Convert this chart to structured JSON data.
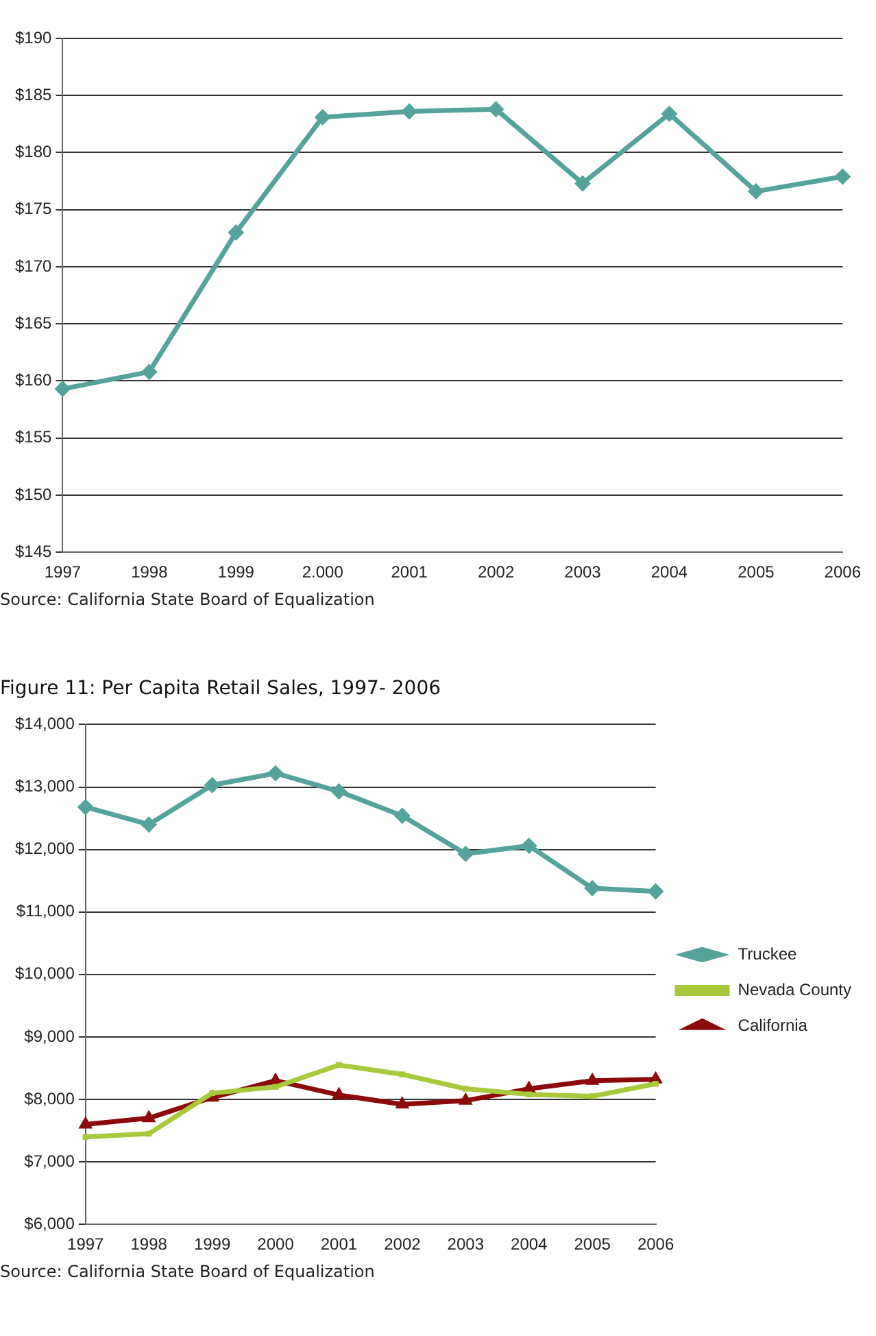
{
  "chart_data": [
    {
      "type": "line",
      "categories": [
        "1997",
        "1998",
        "1999",
        "2.000",
        "2001",
        "2002",
        "2003",
        "2004",
        "2005",
        "2006"
      ],
      "series": [
        {
          "color": "#55a39a",
          "marker": "diamond",
          "values": [
            159.3,
            160.8,
            173.0,
            183.1,
            183.6,
            183.8,
            177.3,
            183.4,
            176.6,
            177.9
          ]
        }
      ],
      "ylim": [
        145,
        190
      ],
      "yticks": [
        {
          "value": 145,
          "label": "$145"
        },
        {
          "value": 150,
          "label": "$150"
        },
        {
          "value": 155,
          "label": "$155"
        },
        {
          "value": 160,
          "label": "$160"
        },
        {
          "value": 165,
          "label": "$165"
        },
        {
          "value": 170,
          "label": "$170"
        },
        {
          "value": 175,
          "label": "$175"
        },
        {
          "value": 180,
          "label": "$180"
        },
        {
          "value": 185,
          "label": "$185"
        },
        {
          "value": 190,
          "label": "$190"
        }
      ],
      "grid": "y",
      "legend": false,
      "annotations": [
        "Source: California State Board of Equalization"
      ]
    },
    {
      "type": "line",
      "title": "Figure 11: Per Capita Retail Sales, 1997- 2006",
      "categories": [
        "1997",
        "1998",
        "1999",
        "2000",
        "2001",
        "2002",
        "2003",
        "2004",
        "2005",
        "2006"
      ],
      "series": [
        {
          "name": "Truckee",
          "color": "#55a39a",
          "marker": "diamond",
          "values": [
            12680,
            12400,
            13030,
            13220,
            12930,
            12540,
            11930,
            12060,
            11380,
            11330
          ]
        },
        {
          "name": "Nevada County",
          "color": "#a8c93a",
          "marker": "square",
          "values": [
            7400,
            7450,
            8100,
            8200,
            8550,
            8400,
            8170,
            8080,
            8050,
            8250
          ]
        },
        {
          "name": "California",
          "color": "#8b0a0a",
          "marker": "triangle",
          "values": [
            7600,
            7700,
            8030,
            8300,
            8070,
            7920,
            7980,
            8170,
            8300,
            8320
          ]
        }
      ],
      "ylim": [
        6000,
        14000
      ],
      "yticks": [
        {
          "value": 6000,
          "label": "$6,000"
        },
        {
          "value": 7000,
          "label": "$7,000"
        },
        {
          "value": 8000,
          "label": "$8,000"
        },
        {
          "value": 9000,
          "label": "$9,000"
        },
        {
          "value": 10000,
          "label": "$10,000"
        },
        {
          "value": 11000,
          "label": "$11,000"
        },
        {
          "value": 12000,
          "label": "$12,000"
        },
        {
          "value": 13000,
          "label": "$13,000"
        },
        {
          "value": 14000,
          "label": "$14,000"
        }
      ],
      "grid": "y",
      "legend": "right",
      "annotations": [
        "Source: California State Board of Equalization"
      ]
    }
  ]
}
